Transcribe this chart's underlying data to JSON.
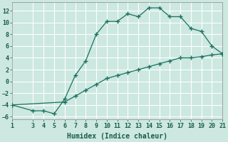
{
  "xlabel": "Humidex (Indice chaleur)",
  "background_color": "#cce8e0",
  "grid_color": "#b0d8d0",
  "line_color": "#1a7060",
  "x_upper": [
    1,
    3,
    4,
    5,
    6,
    7,
    8,
    9,
    10,
    11,
    12,
    13,
    14,
    15,
    16,
    17,
    18,
    19,
    20,
    21
  ],
  "y_upper": [
    -4,
    -5,
    -5,
    -5.5,
    -3,
    1,
    3.5,
    8,
    10.2,
    10.2,
    11.5,
    11,
    12.5,
    12.5,
    11,
    11,
    9,
    8.5,
    6,
    4.7
  ],
  "x_lower": [
    1,
    6,
    7,
    8,
    9,
    10,
    11,
    12,
    13,
    14,
    15,
    16,
    17,
    18,
    19,
    20,
    21
  ],
  "y_lower": [
    -4,
    -3.5,
    -2.5,
    -1.5,
    -0.5,
    0.5,
    1,
    1.5,
    2,
    2.5,
    3,
    3.5,
    4,
    4,
    4.2,
    4.5,
    4.7
  ],
  "xlim": [
    1,
    21
  ],
  "ylim": [
    -6.5,
    13.5
  ],
  "xticks": [
    1,
    3,
    4,
    5,
    6,
    7,
    8,
    9,
    10,
    11,
    12,
    13,
    14,
    15,
    16,
    17,
    18,
    19,
    20,
    21
  ],
  "yticks": [
    -6,
    -4,
    -2,
    0,
    2,
    4,
    6,
    8,
    10,
    12
  ],
  "tick_fontsize": 6,
  "label_fontsize": 7
}
